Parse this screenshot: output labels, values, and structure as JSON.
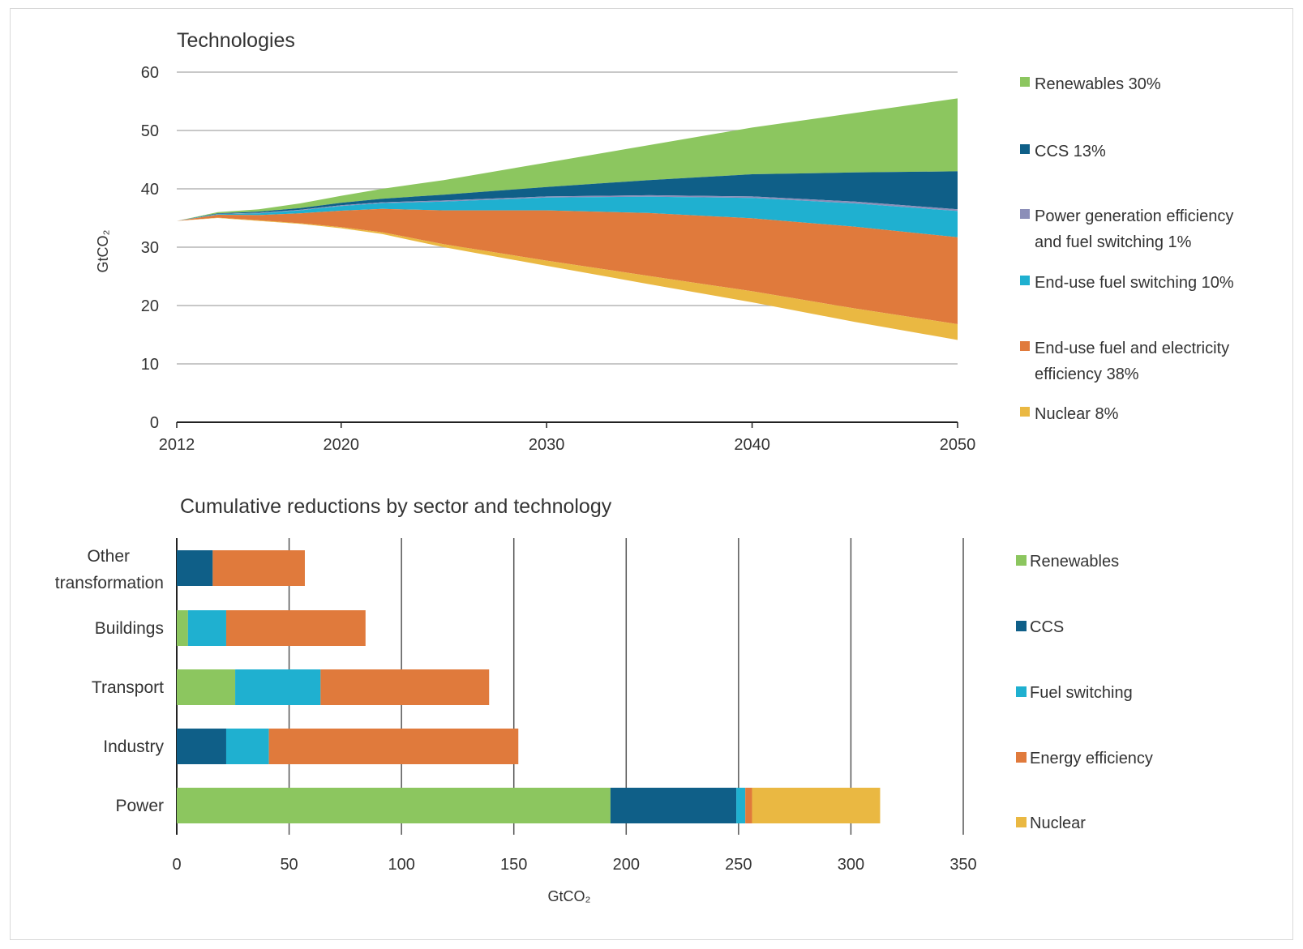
{
  "chart_data": [
    {
      "type": "area",
      "title": "Technologies",
      "ylabel": "GtCO₂",
      "xlabel": "",
      "ylim": [
        0,
        60
      ],
      "yticks": [
        "0",
        "10",
        "20",
        "30",
        "40",
        "50",
        "60"
      ],
      "xticks": [
        "2012",
        "2020",
        "2030",
        "2040",
        "2050"
      ],
      "x": [
        2012,
        2014,
        2016,
        2018,
        2020,
        2022,
        2025,
        2030,
        2035,
        2040,
        2045,
        2050
      ],
      "top_line": [
        34.5,
        36.0,
        36.5,
        37.5,
        38.8,
        40.0,
        41.5,
        44.5,
        47.5,
        50.5,
        53.0,
        55.5
      ],
      "bottom_line": [
        34.5,
        35.5,
        35.5,
        35.0,
        34.0,
        32.5,
        30.0,
        26.0,
        22.5,
        19.5,
        16.5,
        14.5
      ],
      "series": [
        {
          "name": "Renewables 30%",
          "color": "#8cc65f",
          "values": [
            0.0,
            0.2,
            0.4,
            0.8,
            1.2,
            1.7,
            2.5,
            4.2,
            6.0,
            8.0,
            10.2,
            12.5
          ]
        },
        {
          "name": "CCS 13%",
          "color": "#0f5f88",
          "values": [
            0.0,
            0.1,
            0.2,
            0.3,
            0.4,
            0.6,
            1.0,
            1.6,
            2.6,
            3.8,
            5.0,
            6.5
          ]
        },
        {
          "name": "Power generation efficiency and fuel switching 1%",
          "color": "#8b8eb8",
          "values": [
            0.0,
            0.05,
            0.1,
            0.1,
            0.15,
            0.15,
            0.2,
            0.2,
            0.25,
            0.25,
            0.3,
            0.3
          ]
        },
        {
          "name": "End-use fuel switching 10%",
          "color": "#1fb0d0",
          "values": [
            0.0,
            0.1,
            0.3,
            0.5,
            0.8,
            1.0,
            1.5,
            2.2,
            2.8,
            3.5,
            4.0,
            4.5
          ]
        },
        {
          "name": "End-use fuel and electricity efficiency 38%",
          "color": "#e07a3c",
          "values": [
            0.0,
            0.5,
            0.9,
            1.7,
            2.8,
            4.0,
            5.8,
            8.6,
            10.8,
            12.5,
            14.0,
            14.9
          ]
        },
        {
          "name": "Nuclear 8%",
          "color": "#eab842",
          "values": [
            0.0,
            0.05,
            0.1,
            0.1,
            0.2,
            0.3,
            0.5,
            0.9,
            1.4,
            1.9,
            2.3,
            2.7
          ]
        }
      ],
      "legend_position": "right"
    },
    {
      "type": "bar",
      "orientation": "horizontal",
      "stacked": true,
      "title": "Cumulative reductions by sector and technology",
      "xlabel": "GtCO₂",
      "xlim": [
        0,
        350
      ],
      "xticks": [
        "0",
        "50",
        "100",
        "150",
        "200",
        "250",
        "300",
        "350"
      ],
      "categories": [
        "Other transformation",
        "Buildings",
        "Transport",
        "Industry",
        "Power"
      ],
      "series": [
        {
          "name": "Renewables",
          "color": "#8cc65f",
          "values": [
            0,
            5,
            26,
            0,
            193
          ]
        },
        {
          "name": "CCS",
          "color": "#0f5f88",
          "values": [
            16,
            0,
            0,
            22,
            56
          ]
        },
        {
          "name": "Fuel switching",
          "color": "#1fb0d0",
          "values": [
            0,
            17,
            38,
            19,
            4
          ]
        },
        {
          "name": "Energy efficiency",
          "color": "#e07a3c",
          "values": [
            41,
            62,
            75,
            111,
            3
          ]
        },
        {
          "name": "Nuclear",
          "color": "#eab842",
          "values": [
            0,
            0,
            0,
            0,
            57
          ]
        }
      ],
      "legend_position": "right"
    }
  ]
}
